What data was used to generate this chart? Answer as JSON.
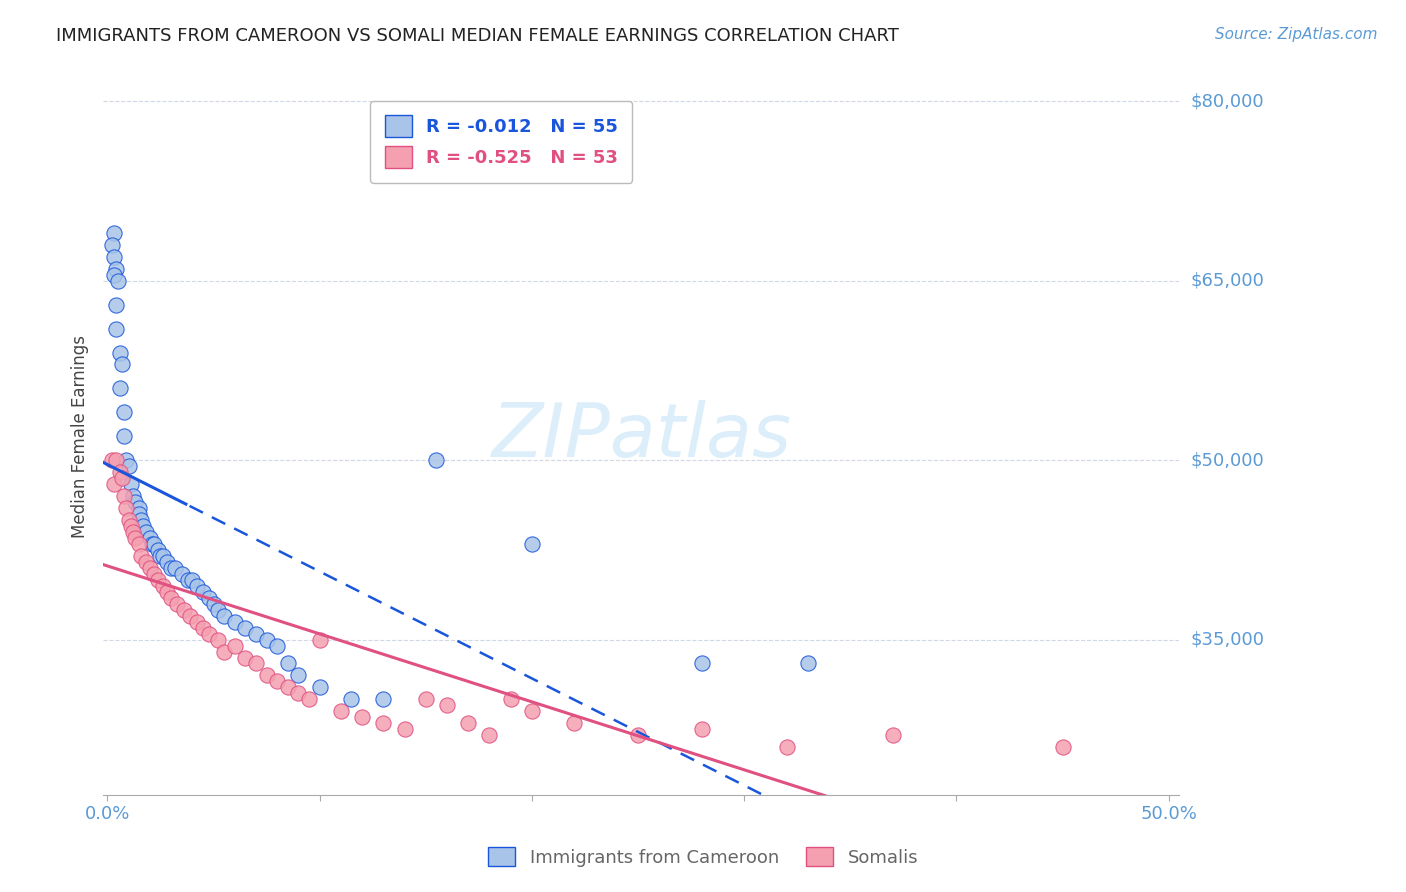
{
  "title": "IMMIGRANTS FROM CAMEROON VS SOMALI MEDIAN FEMALE EARNINGS CORRELATION CHART",
  "source": "Source: ZipAtlas.com",
  "ylabel": "Median Female Earnings",
  "ytick_labels": [
    "$80,000",
    "$65,000",
    "$50,000",
    "$35,000"
  ],
  "ytick_values": [
    80000,
    65000,
    50000,
    35000
  ],
  "ymin": 22000,
  "ymax": 82000,
  "xmin": -0.002,
  "xmax": 0.505,
  "legend_R1": "-0.012",
  "legend_N1": "55",
  "legend_R2": "-0.525",
  "legend_N2": "53",
  "color_cameroon": "#a8c4e8",
  "color_somali": "#f4a0b0",
  "color_trendline_cameroon": "#1a56db",
  "color_trendline_somali": "#e05080",
  "color_axis_labels": "#5b9bd5",
  "color_grid": "#d0d8e8",
  "watermark_color": "#dceefa",
  "cameroon_x": [
    0.003,
    0.002,
    0.003,
    0.004,
    0.003,
    0.005,
    0.004,
    0.004,
    0.006,
    0.007,
    0.006,
    0.008,
    0.008,
    0.009,
    0.01,
    0.011,
    0.012,
    0.013,
    0.015,
    0.015,
    0.016,
    0.017,
    0.018,
    0.02,
    0.021,
    0.022,
    0.024,
    0.025,
    0.026,
    0.028,
    0.03,
    0.032,
    0.035,
    0.038,
    0.04,
    0.042,
    0.045,
    0.048,
    0.05,
    0.052,
    0.055,
    0.06,
    0.065,
    0.07,
    0.075,
    0.08,
    0.085,
    0.09,
    0.1,
    0.115,
    0.13,
    0.155,
    0.2,
    0.28,
    0.33
  ],
  "cameroon_y": [
    69000,
    68000,
    67000,
    66000,
    65500,
    65000,
    63000,
    61000,
    59000,
    58000,
    56000,
    54000,
    52000,
    50000,
    49500,
    48000,
    47000,
    46500,
    46000,
    45500,
    45000,
    44500,
    44000,
    43500,
    43000,
    43000,
    42500,
    42000,
    42000,
    41500,
    41000,
    41000,
    40500,
    40000,
    40000,
    39500,
    39000,
    38500,
    38000,
    37500,
    37000,
    36500,
    36000,
    35500,
    35000,
    34500,
    33000,
    32000,
    31000,
    30000,
    30000,
    50000,
    43000,
    33000,
    33000
  ],
  "somali_x": [
    0.002,
    0.003,
    0.004,
    0.006,
    0.007,
    0.008,
    0.009,
    0.01,
    0.011,
    0.012,
    0.013,
    0.015,
    0.016,
    0.018,
    0.02,
    0.022,
    0.024,
    0.026,
    0.028,
    0.03,
    0.033,
    0.036,
    0.039,
    0.042,
    0.045,
    0.048,
    0.052,
    0.055,
    0.06,
    0.065,
    0.07,
    0.075,
    0.08,
    0.085,
    0.09,
    0.095,
    0.1,
    0.11,
    0.12,
    0.13,
    0.14,
    0.15,
    0.16,
    0.17,
    0.18,
    0.19,
    0.2,
    0.22,
    0.25,
    0.28,
    0.32,
    0.37,
    0.45
  ],
  "somali_y": [
    50000,
    48000,
    50000,
    49000,
    48500,
    47000,
    46000,
    45000,
    44500,
    44000,
    43500,
    43000,
    42000,
    41500,
    41000,
    40500,
    40000,
    39500,
    39000,
    38500,
    38000,
    37500,
    37000,
    36500,
    36000,
    35500,
    35000,
    34000,
    34500,
    33500,
    33000,
    32000,
    31500,
    31000,
    30500,
    30000,
    35000,
    29000,
    28500,
    28000,
    27500,
    30000,
    29500,
    28000,
    27000,
    30000,
    29000,
    28000,
    27000,
    27500,
    26000,
    27000,
    26000
  ]
}
